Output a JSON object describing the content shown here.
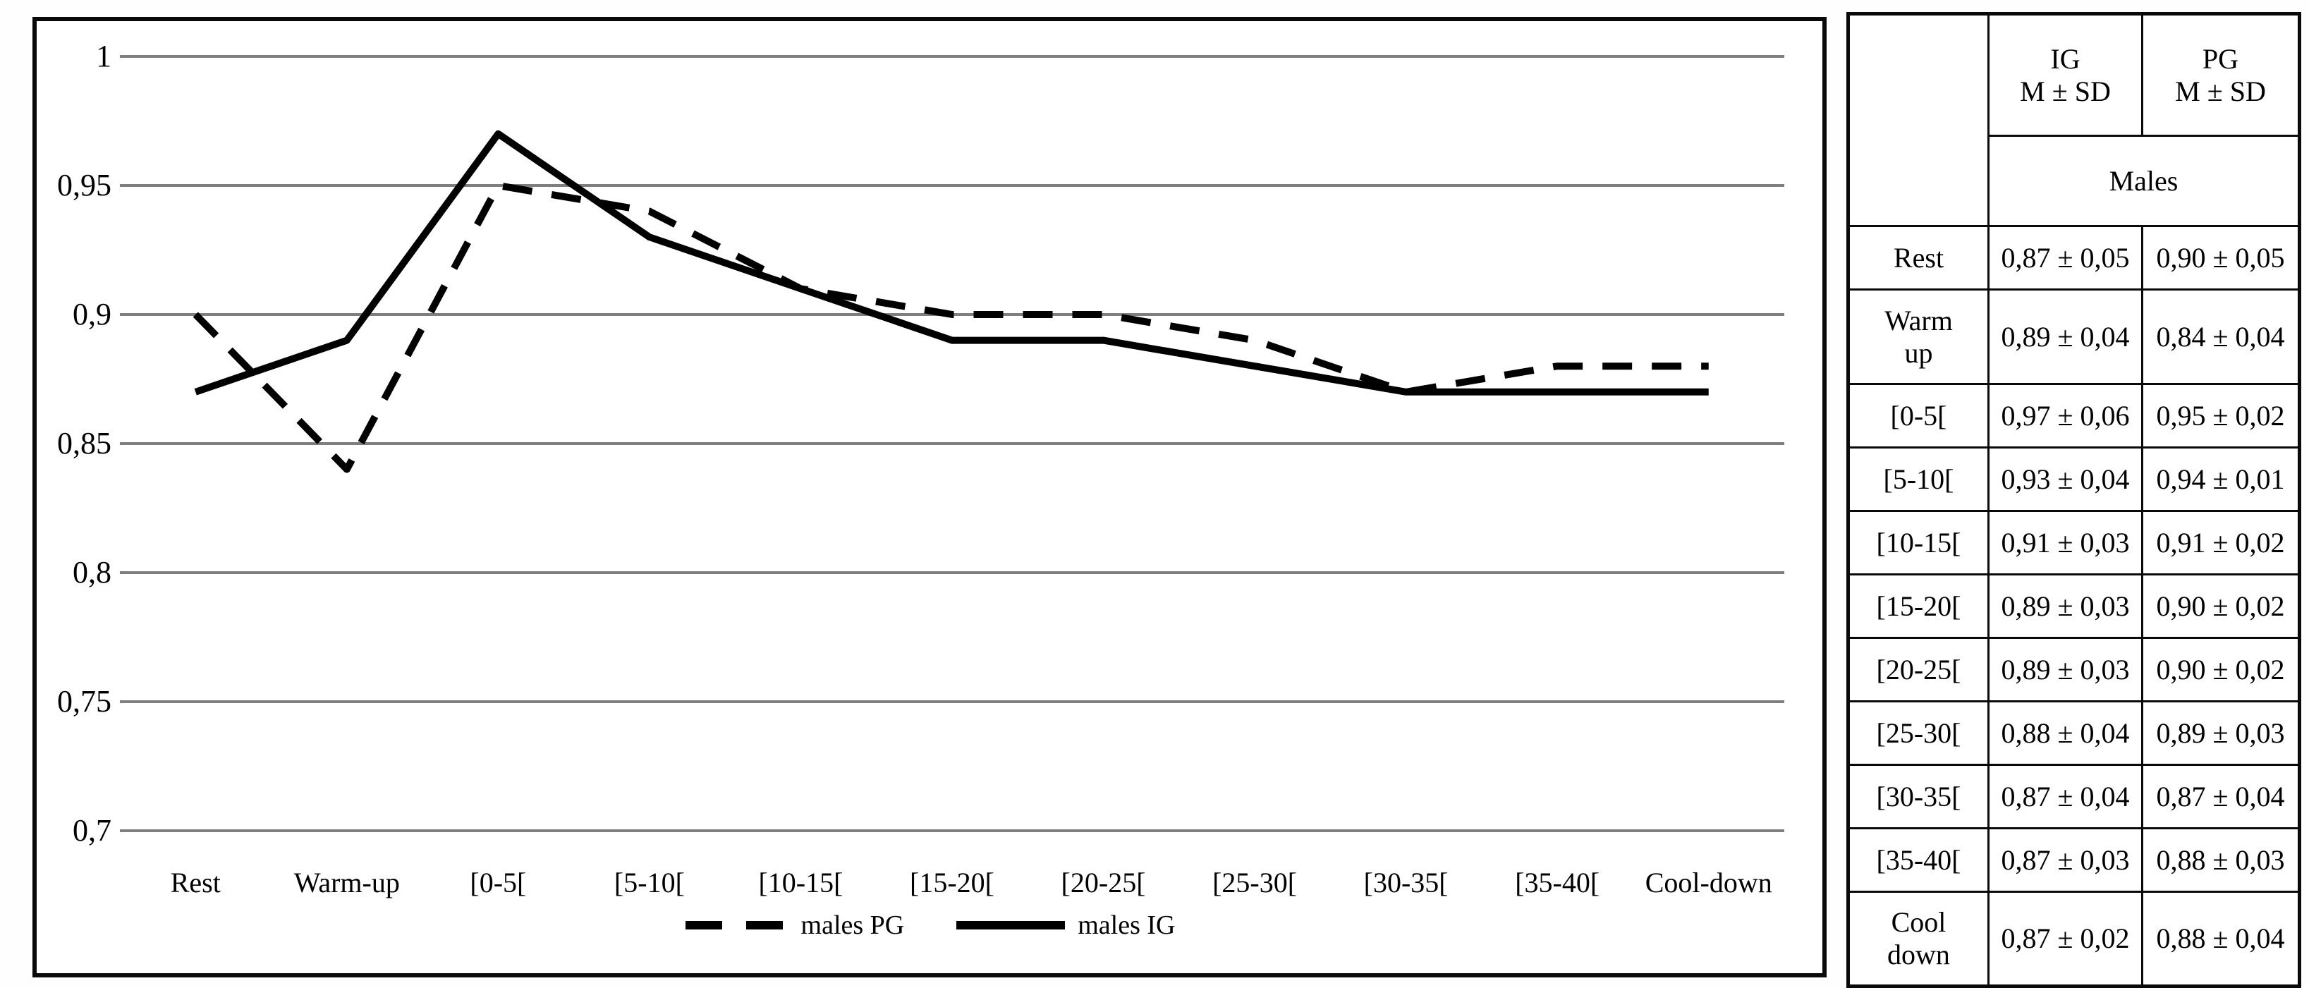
{
  "chart_data": {
    "type": "line",
    "title": "",
    "xlabel": "",
    "ylabel": "",
    "categories": [
      "Rest",
      "Warm-up",
      "[0-5[",
      "[5-10[",
      "[10-15[",
      "[15-20[",
      "[20-25[",
      "[25-30[",
      "[30-35[",
      "[35-40[",
      "Cool-down"
    ],
    "series": [
      {
        "name": "males PG",
        "style": "dashed",
        "values": [
          0.9,
          0.84,
          0.95,
          0.94,
          0.91,
          0.9,
          0.9,
          0.89,
          0.87,
          0.88,
          0.88
        ]
      },
      {
        "name": "males IG",
        "style": "solid",
        "values": [
          0.87,
          0.89,
          0.97,
          0.93,
          0.91,
          0.89,
          0.89,
          0.88,
          0.87,
          0.87,
          0.87
        ]
      }
    ],
    "ylim": [
      0.7,
      1.0
    ],
    "y_ticks": [
      {
        "value": 1.0,
        "label": "1"
      },
      {
        "value": 0.95,
        "label": "0,95"
      },
      {
        "value": 0.9,
        "label": "0,9"
      },
      {
        "value": 0.85,
        "label": "0,85"
      },
      {
        "value": 0.8,
        "label": "0,8"
      },
      {
        "value": 0.75,
        "label": "0,75"
      },
      {
        "value": 0.7,
        "label": "0,7"
      }
    ],
    "grid": true,
    "legend_position": "bottom"
  },
  "table": {
    "col_headers": [
      {
        "group": "IG",
        "sub": "M ± SD"
      },
      {
        "group": "PG",
        "sub": "M ± SD"
      }
    ],
    "section_header": "Males",
    "rows": [
      {
        "label": "Rest",
        "ig": "0,87 ± 0,05",
        "pg": "0,90 ± 0,05"
      },
      {
        "label": "Warm\nup",
        "ig": "0,89 ± 0,04",
        "pg": "0,84 ± 0,04"
      },
      {
        "label": "[0-5[",
        "ig": "0,97 ± 0,06",
        "pg": "0,95 ± 0,02"
      },
      {
        "label": "[5-10[",
        "ig": "0,93 ± 0,04",
        "pg": "0,94 ± 0,01"
      },
      {
        "label": "[10-15[",
        "ig": "0,91 ± 0,03",
        "pg": "0,91 ± 0,02"
      },
      {
        "label": "[15-20[",
        "ig": "0,89 ± 0,03",
        "pg": "0,90 ± 0,02"
      },
      {
        "label": "[20-25[",
        "ig": "0,89 ± 0,03",
        "pg": "0,90 ± 0,02"
      },
      {
        "label": "[25-30[",
        "ig": "0,88 ± 0,04",
        "pg": "0,89 ± 0,03"
      },
      {
        "label": "[30-35[",
        "ig": "0,87 ± 0,04",
        "pg": "0,87 ± 0,04"
      },
      {
        "label": "[35-40[",
        "ig": "0,87 ± 0,03",
        "pg": "0,88 ± 0,03"
      },
      {
        "label": "Cool\ndown",
        "ig": "0,87 ± 0,02",
        "pg": "0,88 ± 0,04"
      }
    ]
  },
  "colors": {
    "line": "#000000",
    "grid": "#7f7f7f",
    "border": "#0a0a0a",
    "background": "#ffffff"
  }
}
